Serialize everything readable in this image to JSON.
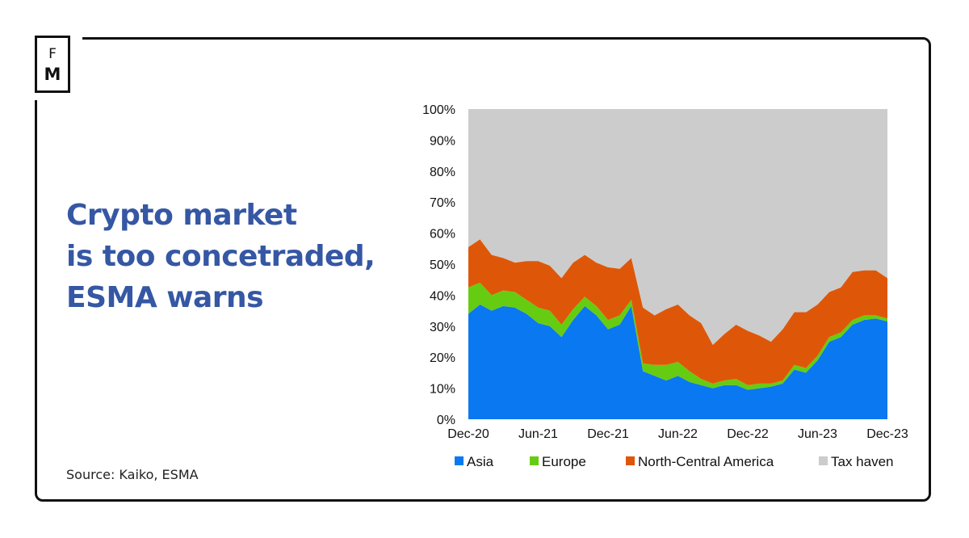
{
  "brand": {
    "logo_top": "F",
    "logo_bottom": "M"
  },
  "headline": [
    "Crypto market",
    "is too concetraded,",
    "ESMA warns"
  ],
  "source": "Source: Kaiko, ESMA",
  "chart_data": {
    "type": "area",
    "stacked": "percent",
    "title": "",
    "xlabel": "",
    "ylabel": "",
    "ylim": [
      0,
      100
    ],
    "yticks": [
      "0%",
      "10%",
      "20%",
      "30%",
      "40%",
      "50%",
      "60%",
      "70%",
      "80%",
      "90%",
      "100%"
    ],
    "xticks": [
      "Dec-20",
      "Jun-21",
      "Dec-21",
      "Jun-22",
      "Dec-22",
      "Jun-23",
      "Dec-23"
    ],
    "x": [
      "Dec-20",
      "Jan-21",
      "Feb-21",
      "Mar-21",
      "Apr-21",
      "May-21",
      "Jun-21",
      "Jul-21",
      "Aug-21",
      "Sep-21",
      "Oct-21",
      "Nov-21",
      "Dec-21",
      "Jan-22",
      "Feb-22",
      "Mar-22",
      "Apr-22",
      "May-22",
      "Jun-22",
      "Jul-22",
      "Aug-22",
      "Sep-22",
      "Oct-22",
      "Nov-22",
      "Dec-22",
      "Jan-23",
      "Feb-23",
      "Mar-23",
      "Apr-23",
      "May-23",
      "Jun-23",
      "Jul-23",
      "Aug-23",
      "Sep-23",
      "Oct-23",
      "Nov-23",
      "Dec-23"
    ],
    "series": [
      {
        "name": "Asia",
        "color": "#0a78f0",
        "values": [
          34,
          37,
          35,
          36.5,
          36,
          34,
          31,
          30,
          26.5,
          32,
          36.5,
          33.5,
          29,
          30.5,
          36.5,
          15.5,
          14,
          12.5,
          14,
          12,
          11,
          10,
          11,
          11,
          9.5,
          10,
          10.5,
          11.5,
          16,
          15,
          19,
          25,
          26.5,
          30.5,
          32,
          32.5,
          31.5
        ]
      },
      {
        "name": "Europe",
        "color": "#66cc11",
        "values": [
          8.5,
          7,
          5,
          5,
          5,
          4.5,
          5,
          5,
          4,
          3.5,
          3,
          3,
          3,
          3,
          2,
          2.5,
          3.5,
          5,
          4.5,
          3.5,
          2,
          1.5,
          1.5,
          2,
          1.5,
          1.5,
          1,
          1,
          1.5,
          1.5,
          1.5,
          1.5,
          1.5,
          1.5,
          1.5,
          1,
          1
        ]
      },
      {
        "name": "North-Central America",
        "color": "#de5708",
        "values": [
          13,
          14,
          13,
          10.5,
          9.5,
          12.5,
          15,
          14.5,
          15,
          15,
          13.5,
          14,
          17,
          15,
          13.5,
          18,
          16,
          18,
          18.5,
          18,
          18,
          12.5,
          15,
          17.5,
          17.5,
          15.5,
          13.5,
          16.5,
          17,
          18,
          16.5,
          14.5,
          14.5,
          15.5,
          14.5,
          14.5,
          13
        ]
      },
      {
        "name": "Tax haven",
        "color": "#cccccc",
        "values": [
          44.5,
          42,
          47,
          48,
          49.5,
          49,
          49,
          50.5,
          54.5,
          49.5,
          47,
          49.5,
          51,
          51.5,
          48,
          64,
          66.5,
          64.5,
          63,
          66.5,
          69,
          76,
          72.5,
          69.5,
          71.5,
          73,
          75,
          71,
          65.5,
          65.5,
          63,
          59,
          57.5,
          52.5,
          52,
          52,
          54.5
        ]
      }
    ],
    "legend_position": "bottom",
    "grid": false
  }
}
